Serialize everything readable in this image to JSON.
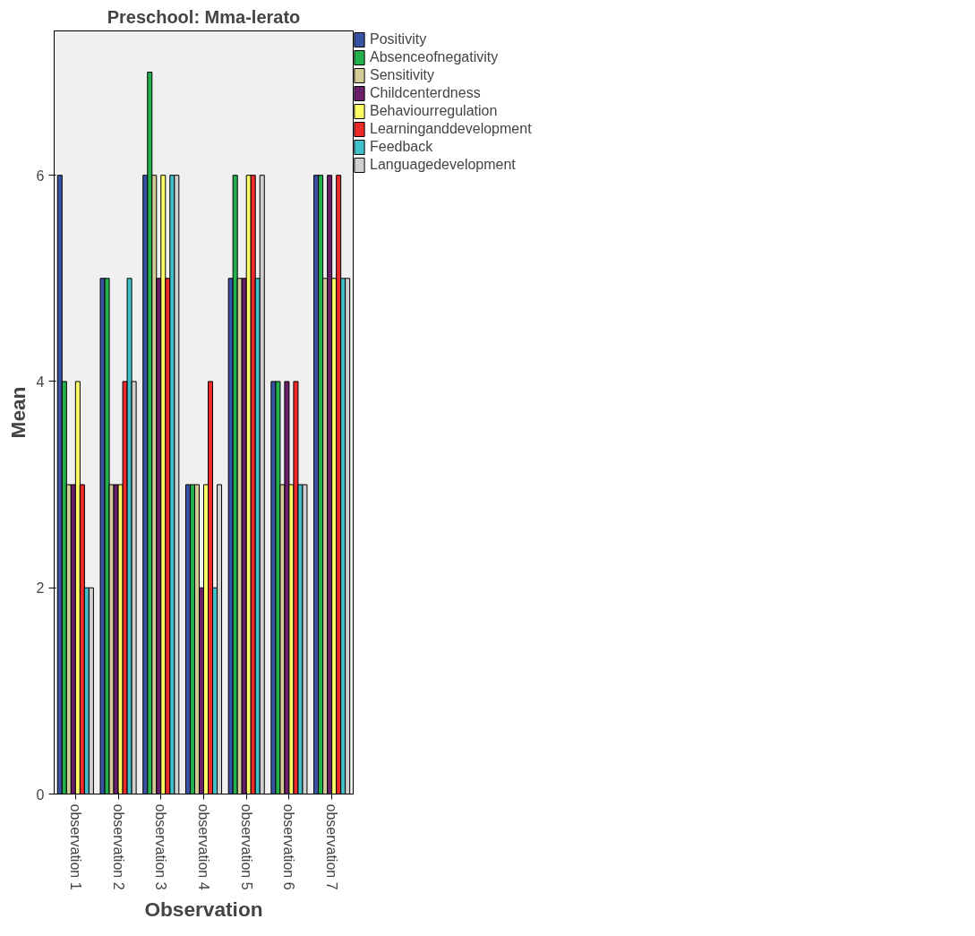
{
  "chart_data": {
    "type": "bar",
    "title": "Preschool: Mma-lerato",
    "xlabel": "Observation",
    "ylabel": "Mean",
    "categories": [
      "observation 1",
      "observation 2",
      "observation 3",
      "observation 4",
      "observation 5",
      "observation 6",
      "observation 7"
    ],
    "series": [
      {
        "name": "Positivity",
        "color": "#3953a4",
        "values": [
          6,
          5,
          6,
          3,
          5,
          4,
          6
        ]
      },
      {
        "name": "Absenceofnegativity",
        "color": "#22b14c",
        "values": [
          4,
          5,
          7,
          3,
          6,
          4,
          6
        ]
      },
      {
        "name": "Sensitivity",
        "color": "#d4cc96",
        "values": [
          3,
          3,
          6,
          3,
          5,
          3,
          5
        ]
      },
      {
        "name": "Childcenterdness",
        "color": "#6b1f6b",
        "values": [
          3,
          3,
          5,
          2,
          5,
          4,
          6
        ]
      },
      {
        "name": "Behaviourregulation",
        "color": "#ffff66",
        "values": [
          4,
          3,
          6,
          3,
          6,
          3,
          5
        ]
      },
      {
        "name": "Learninganddevelopment",
        "color": "#ee2a2a",
        "values": [
          3,
          4,
          5,
          4,
          6,
          4,
          6
        ]
      },
      {
        "name": "Feedback",
        "color": "#40c0c8",
        "values": [
          2,
          5,
          6,
          2,
          5,
          3,
          5
        ]
      },
      {
        "name": "Languagedevelopment",
        "color": "#d0d0d0",
        "values": [
          2,
          4,
          6,
          3,
          6,
          3,
          5
        ]
      }
    ],
    "ylim": [
      0,
      7.4
    ],
    "yticks": [
      0,
      2,
      4,
      6
    ],
    "grid": false,
    "legend": "top right"
  }
}
